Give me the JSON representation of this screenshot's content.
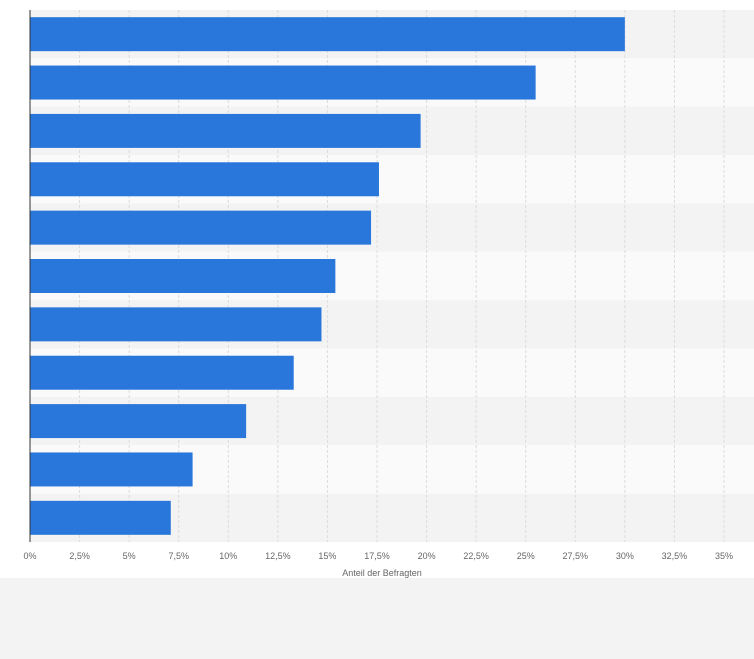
{
  "chart_data": {
    "type": "bar",
    "orientation": "horizontal",
    "categories": [
      "",
      "",
      "",
      "",
      "",
      "",
      "",
      "",
      "",
      "",
      ""
    ],
    "values": [
      30.0,
      25.5,
      19.7,
      17.6,
      17.2,
      15.4,
      14.7,
      13.3,
      10.9,
      8.2,
      7.1
    ],
    "unit": "%",
    "xlabel": "Anteil der Befragten",
    "xlim": [
      0,
      35
    ],
    "xticks": [
      "0%",
      "2,5%",
      "5%",
      "7,5%",
      "10%",
      "12,5%",
      "15%",
      "17,5%",
      "20%",
      "22,5%",
      "25%",
      "27,5%",
      "30%",
      "32,5%",
      "35%"
    ],
    "grid": true,
    "bar_color": "#2a77dc",
    "band_colors": [
      "#f3f3f3",
      "#fafafa"
    ],
    "gridline_color": "#dcdcdc",
    "axis_color": "#333333"
  }
}
